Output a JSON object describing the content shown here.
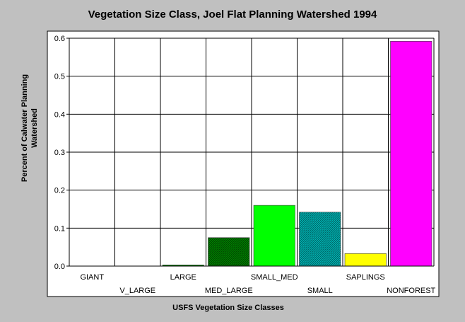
{
  "chart_data": {
    "type": "bar",
    "title": "Vegetation Size Class, Joel Flat Planning Watershed 1994",
    "xlabel": "USFS Vegetation Size Classes",
    "ylabel_lines": [
      "Percent of Calwater Planning",
      "Watershed"
    ],
    "ylim": [
      0,
      0.6
    ],
    "yticks": [
      "0.0",
      "0.1",
      "0.2",
      "0.3",
      "0.4",
      "0.5",
      "0.6"
    ],
    "grid": true,
    "categories": [
      "GIANT",
      "V_LARGE",
      "LARGE",
      "MED_LARGE",
      "SMALL_MED",
      "SMALL",
      "SAPLINGS",
      "NONFOREST"
    ],
    "values": [
      0,
      0,
      0.003,
      0.075,
      0.16,
      0.142,
      0.033,
      0.592
    ],
    "colors": [
      "#008000",
      "#008000",
      "#008000",
      "#008000",
      "#00ff00",
      "#00a0a0",
      "#ffff00",
      "#ff00ff"
    ],
    "hatched": [
      false,
      false,
      false,
      true,
      false,
      true,
      false,
      false
    ]
  }
}
